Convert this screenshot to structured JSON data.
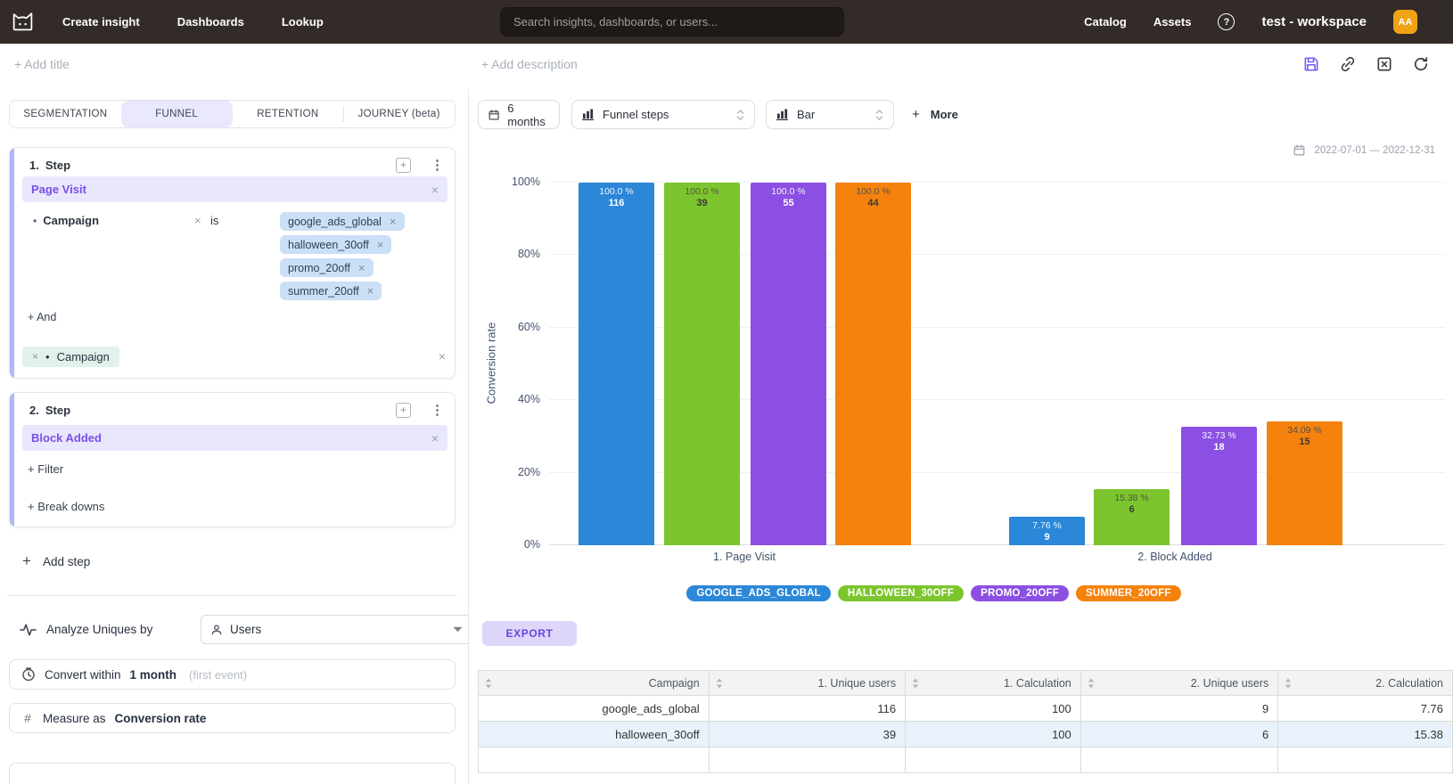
{
  "topbar": {
    "nav": [
      "Create insight",
      "Dashboards",
      "Lookup"
    ],
    "search_placeholder": "Search insights, dashboards, or users...",
    "nav_right": [
      "Catalog",
      "Assets"
    ],
    "workspace": "test - workspace",
    "avatar_initials": "AA"
  },
  "title_row": {
    "add_title": "+ Add title",
    "add_description": "+ Add description"
  },
  "left_panel": {
    "tabs": [
      {
        "label": "SEGMENTATION",
        "active": false
      },
      {
        "label": "FUNNEL",
        "active": true
      },
      {
        "label": "RETENTION",
        "active": false
      },
      {
        "label": "JOURNEY (beta)",
        "active": false
      }
    ],
    "steps": [
      {
        "index": "1.",
        "title": "Step",
        "event": "Page Visit",
        "filter": {
          "property": "Campaign",
          "operator": "is",
          "values": [
            "google_ads_global",
            "halloween_30off",
            "promo_20off",
            "summer_20off"
          ]
        },
        "and_label": "+ And",
        "breakdown": "Campaign"
      },
      {
        "index": "2.",
        "title": "Step",
        "event": "Block Added",
        "filter_label": "+ Filter",
        "breakdowns_label": "+ Break downs"
      }
    ],
    "add_step_label": "Add step",
    "analyze": {
      "label": "Analyze Uniques by",
      "value": "Users"
    },
    "convert": {
      "prefix": "Convert within",
      "value": "1 month",
      "suffix": "(first event)"
    },
    "measure": {
      "prefix": "Measure as",
      "value": "Conversion rate"
    }
  },
  "toolbar": {
    "date_button": "6 months",
    "chart_select": "Funnel steps",
    "type_select": "Bar",
    "more_label": "More"
  },
  "date_range": "2022-07-01 — 2022-12-31",
  "chart_data": {
    "type": "bar",
    "title": "",
    "xlabel": "",
    "ylabel": "Conversion rate",
    "ylim": [
      0,
      100
    ],
    "yticks": [
      "0%",
      "20%",
      "40%",
      "60%",
      "80%",
      "100%"
    ],
    "grid": true,
    "legend_position": "bottom",
    "categories": [
      "1. Page Visit",
      "2. Block Added"
    ],
    "series": [
      {
        "name": "google_ads_global",
        "color": "#2b87d8",
        "label_dark": false,
        "values": [
          100.0,
          7.76
        ],
        "pct_labels": [
          "100.0 %",
          "7.76 %"
        ],
        "counts": [
          "116",
          "9"
        ]
      },
      {
        "name": "halloween_30off",
        "color": "#7cc52e",
        "label_dark": true,
        "values": [
          100.0,
          15.38
        ],
        "pct_labels": [
          "100.0 %",
          "15.38 %"
        ],
        "counts": [
          "39",
          "6"
        ]
      },
      {
        "name": "promo_20off",
        "color": "#8b4fe3",
        "label_dark": false,
        "values": [
          100.0,
          32.73
        ],
        "pct_labels": [
          "100.0 %",
          "32.73 %"
        ],
        "counts": [
          "55",
          "18"
        ]
      },
      {
        "name": "summer_20off",
        "color": "#f5820d",
        "label_dark": true,
        "values": [
          100.0,
          34.09
        ],
        "pct_labels": [
          "100.0 %",
          "34.09 %"
        ],
        "counts": [
          "44",
          "15"
        ]
      }
    ],
    "legend": [
      "GOOGLE_ADS_GLOBAL",
      "HALLOWEEN_30OFF",
      "PROMO_20OFF",
      "SUMMER_20OFF"
    ]
  },
  "export_label": "EXPORT",
  "table": {
    "columns": [
      "Campaign",
      "1. Unique users",
      "1. Calculation",
      "2. Unique users",
      "2. Calculation"
    ],
    "rows": [
      [
        "google_ads_global",
        "116",
        "100",
        "9",
        "7.76"
      ],
      [
        "halloween_30off",
        "39",
        "100",
        "6",
        "15.38"
      ]
    ]
  },
  "icons": {
    "plus": "+",
    "close": "×",
    "kebab": "⋮",
    "help": "?",
    "hash": "#",
    "bullet": "•"
  }
}
